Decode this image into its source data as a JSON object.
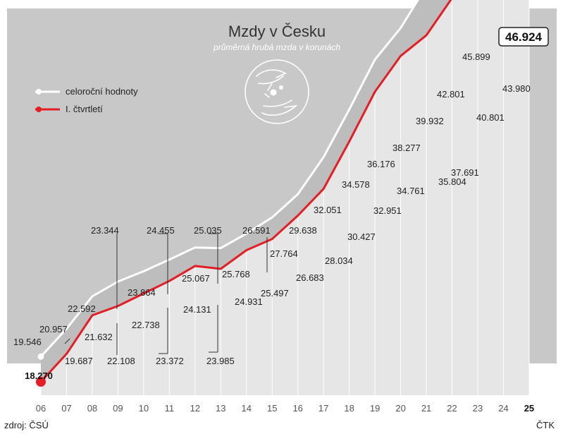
{
  "chart_data": {
    "type": "line",
    "title": "Mzdy v Česku",
    "subtitle": "průměrná hrubá mzda v korunách",
    "source": "zdroj: ČSÚ",
    "agency": "ČTK",
    "x": [
      "06",
      "07",
      "08",
      "09",
      "10",
      "11",
      "12",
      "13",
      "14",
      "15",
      "16",
      "17",
      "18",
      "19",
      "20",
      "21",
      "22",
      "23",
      "24",
      "25"
    ],
    "series": [
      {
        "name": "celoroční hodnoty",
        "color": "#ffffff",
        "values": [
          19546,
          20957,
          22592,
          23344,
          23864,
          24455,
          25067,
          25035,
          25768,
          26591,
          27764,
          29638,
          32051,
          34578,
          36176,
          38277,
          39932,
          42801,
          45899,
          null
        ],
        "labels": [
          "19.546",
          "20.957",
          "22.592",
          "23.344",
          "23.864",
          "24.455",
          "25.067",
          "25.035",
          "25.768",
          "26.591",
          "27.764",
          "29.638",
          "32.051",
          "34.578",
          "36.176",
          "38.277",
          "39.932",
          "42.801",
          "45.899",
          ""
        ]
      },
      {
        "name": "I. čtvrtletí",
        "color": "#e31e24",
        "values": [
          18270,
          19687,
          21632,
          22108,
          22738,
          23372,
          24131,
          23985,
          24931,
          25497,
          26683,
          28034,
          30427,
          32951,
          34761,
          35804,
          37691,
          40801,
          43980,
          46924
        ],
        "labels": [
          "18.270",
          "19.687",
          "21.632",
          "22.108",
          "22.738",
          "23.372",
          "24.131",
          "23.985",
          "24.931",
          "25.497",
          "26.683",
          "28.034",
          "30.427",
          "32.951",
          "34.761",
          "35.804",
          "37.691",
          "40.801",
          "43.980",
          "46.924"
        ]
      }
    ],
    "ylim": [
      14000,
      48000
    ],
    "grid": false,
    "legend": "top-left"
  }
}
